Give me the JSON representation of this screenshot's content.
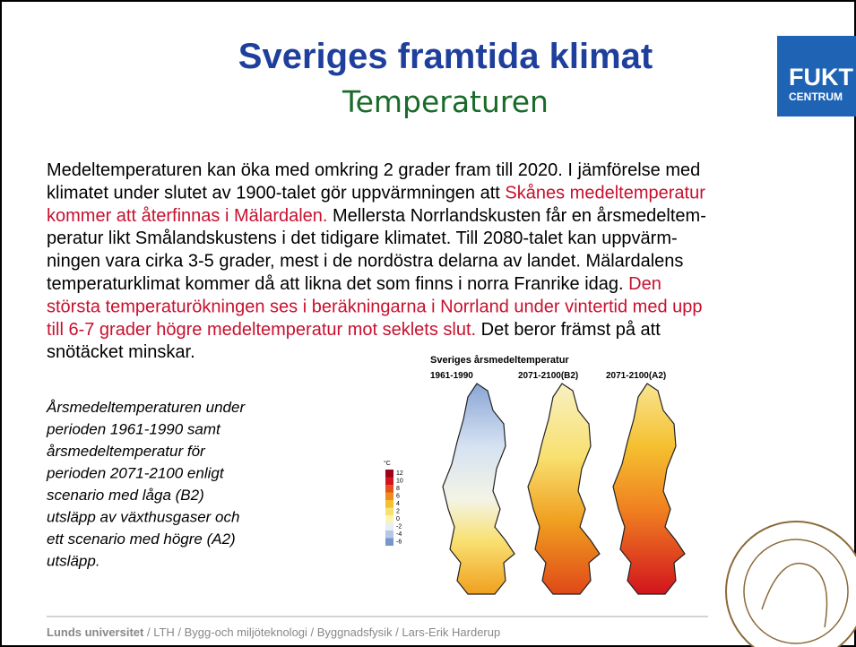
{
  "header": {
    "title": "Sveriges framtida klimat",
    "subtitle": "Temperaturen",
    "logo": {
      "line1": "FUKT",
      "line2": "CENTRUM"
    }
  },
  "body": {
    "lines": [
      [
        {
          "text": "Medeltemperaturen kan öka med omkring 2 grader fram till 2020. I jämförelse med",
          "highlight": false
        }
      ],
      [
        {
          "text": "klimatet under slutet av 1900-talet gör uppvärmningen att ",
          "highlight": false
        },
        {
          "text": "Skånes medeltemperatur",
          "highlight": true
        }
      ],
      [
        {
          "text": "kommer att återfinnas i Mälardalen.",
          "highlight": true
        },
        {
          "text": " Mellersta Norrlandskusten får en årsmedeltem-",
          "highlight": false
        }
      ],
      [
        {
          "text": "peratur likt Smålandskustens i det tidigare klimatet. Till 2080-talet kan uppvärm-",
          "highlight": false
        }
      ],
      [
        {
          "text": "ningen vara cirka 3-5 grader, mest i de nordöstra delarna av landet. Mälardalens",
          "highlight": false
        }
      ],
      [
        {
          "text": "temperaturklimat kommer då att likna det som finns i norra Franrike idag. ",
          "highlight": false
        },
        {
          "text": "Den",
          "highlight": true
        }
      ],
      [
        {
          "text": "största temperaturökningen ses i beräkningarna i Norrland under vintertid med upp",
          "highlight": true
        }
      ],
      [
        {
          "text": "till 6-7 grader högre medeltemperatur mot seklets slut.",
          "highlight": true
        },
        {
          "text": " Det beror främst på att",
          "highlight": false
        }
      ],
      [
        {
          "text": "snötäcket minskar.",
          "highlight": false
        }
      ]
    ]
  },
  "caption": {
    "lines": [
      "Årsmedeltemperaturen under",
      "perioden 1961-1990 samt",
      "årsmedeltemperatur för",
      "perioden 2071-2100 enligt",
      "scenario med låga (B2)",
      "utsläpp av växthusgaser och",
      "ett scenario med högre (A2)",
      "utsläpp."
    ]
  },
  "figure": {
    "title": "Sveriges årsmedeltemperatur",
    "maps": [
      "1961-1990",
      "2071-2100(B2)",
      "2071-2100(A2)"
    ],
    "legend": {
      "unit": "°C",
      "labels": [
        12,
        10,
        8,
        6,
        4,
        2,
        0,
        -2,
        -4,
        -6
      ],
      "colors": [
        "#a0001a",
        "#d2141e",
        "#e8501e",
        "#f08c1e",
        "#f5c030",
        "#f8e070",
        "#fbf5b0",
        "#e6eef8",
        "#b4c8e6",
        "#7896cc"
      ]
    }
  },
  "footer": {
    "institution": "Lunds universitet",
    "path": " / LTH / Bygg-och miljöteknologi / Byggnadsfysik / Lars-Erik Harderup"
  }
}
